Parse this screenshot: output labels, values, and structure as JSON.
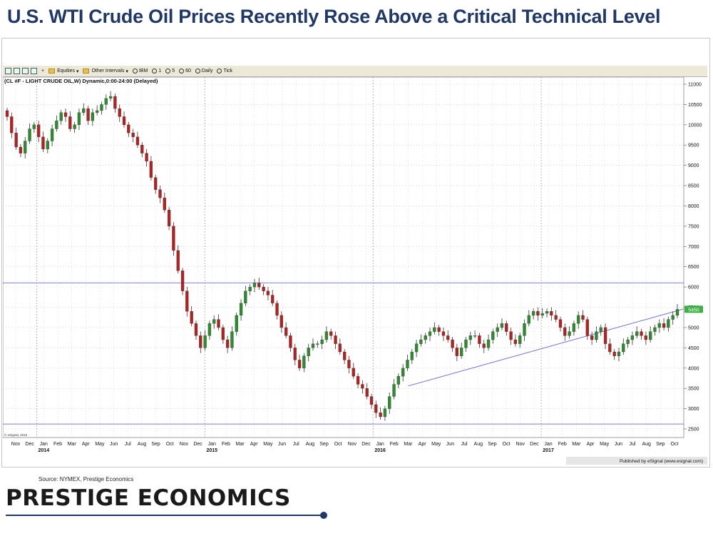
{
  "title": "U.S. WTI Crude Oil Prices Recently Rose Above a Critical Technical Level",
  "toolbar": {
    "items": [
      "Equities",
      "Other Intervals",
      "IBM",
      "1",
      "5",
      "60",
      "Daily",
      "Tick"
    ]
  },
  "chart_data": {
    "type": "candlestick",
    "instrument_label": "(CL #F - LIGHT CRUDE OIL,W) Dynamic,0:00-24:00 (Delayed)",
    "ylim": [
      2500,
      11000
    ],
    "y_ticks": [
      11000,
      10500,
      10000,
      9500,
      9000,
      8500,
      8000,
      7500,
      7000,
      6500,
      6000,
      5500,
      5000,
      4500,
      4000,
      3500,
      3000,
      2500
    ],
    "x_ticks": [
      "Nov",
      "Dec",
      "Jan",
      "Feb",
      "Mar",
      "Apr",
      "May",
      "Jun",
      "Jul",
      "Aug",
      "Sep",
      "Oct",
      "Nov",
      "Dec",
      "Jan",
      "Feb",
      "Mar",
      "Apr",
      "May",
      "Jun",
      "Jul",
      "Aug",
      "Sep",
      "Oct",
      "Nov",
      "Dec",
      "Jan",
      "Feb",
      "Mar",
      "Apr",
      "May",
      "Jun",
      "Jul",
      "Aug",
      "Sep",
      "Oct",
      "Nov",
      "Dec",
      "Jan",
      "Feb",
      "Mar",
      "Apr",
      "May",
      "Jun",
      "Jul",
      "Aug",
      "Sep",
      "Oct"
    ],
    "year_labels": [
      "2014",
      "2015",
      "2016",
      "2017"
    ],
    "last_price_label": "5450",
    "horizontal_levels": [
      6100,
      2620
    ],
    "trendline": {
      "start": [
        "2016 Mar",
        3560
      ],
      "end": [
        "2017 Oct",
        5460
      ]
    },
    "weekly_close": [
      10200,
      9800,
      9450,
      9300,
      9600,
      9900,
      10000,
      9700,
      9400,
      9600,
      9900,
      10100,
      10300,
      10200,
      9900,
      10000,
      10300,
      10400,
      10100,
      10300,
      10350,
      10500,
      10650,
      10700,
      10400,
      10200,
      10000,
      9800,
      9700,
      9500,
      9300,
      9100,
      8700,
      8400,
      8200,
      7900,
      7500,
      6900,
      6400,
      5900,
      5400,
      5100,
      4800,
      4500,
      4800,
      5100,
      5200,
      5000,
      4700,
      4500,
      4900,
      5300,
      5600,
      5900,
      6000,
      6100,
      6000,
      5900,
      5800,
      5600,
      5300,
      5000,
      4800,
      4500,
      4200,
      4000,
      4300,
      4500,
      4600,
      4600,
      4700,
      4900,
      4800,
      4600,
      4400,
      4200,
      4000,
      3800,
      3600,
      3500,
      3300,
      3100,
      2900,
      2800,
      3000,
      3300,
      3600,
      3800,
      4000,
      4200,
      4400,
      4600,
      4700,
      4800,
      4900,
      5000,
      4900,
      4800,
      4700,
      4500,
      4300,
      4500,
      4700,
      4800,
      4800,
      4600,
      4500,
      4700,
      4900,
      5000,
      5100,
      4900,
      4700,
      4600,
      4800,
      5100,
      5300,
      5400,
      5300,
      5350,
      5400,
      5300,
      5200,
      5000,
      4800,
      4900,
      5100,
      5300,
      5200,
      4800,
      4700,
      4900,
      5000,
      4600,
      4400,
      4300,
      4400,
      4600,
      4700,
      4800,
      4900,
      4800,
      4700,
      4900,
      5000,
      5100,
      5000,
      5200,
      5300,
      5450
    ]
  },
  "chart_notes": {
    "esignal_mark": "© eSignal, 2016",
    "published": "Published by eSignal (www.esignal.com)"
  },
  "source": "Source: NYMEX, Prestige Economics",
  "brand": "PRESTIGE ECONOMICS",
  "colors": {
    "up": "#2e8b2e",
    "down": "#b22222",
    "levels": "#7b7fd0",
    "title": "#1f3864"
  }
}
